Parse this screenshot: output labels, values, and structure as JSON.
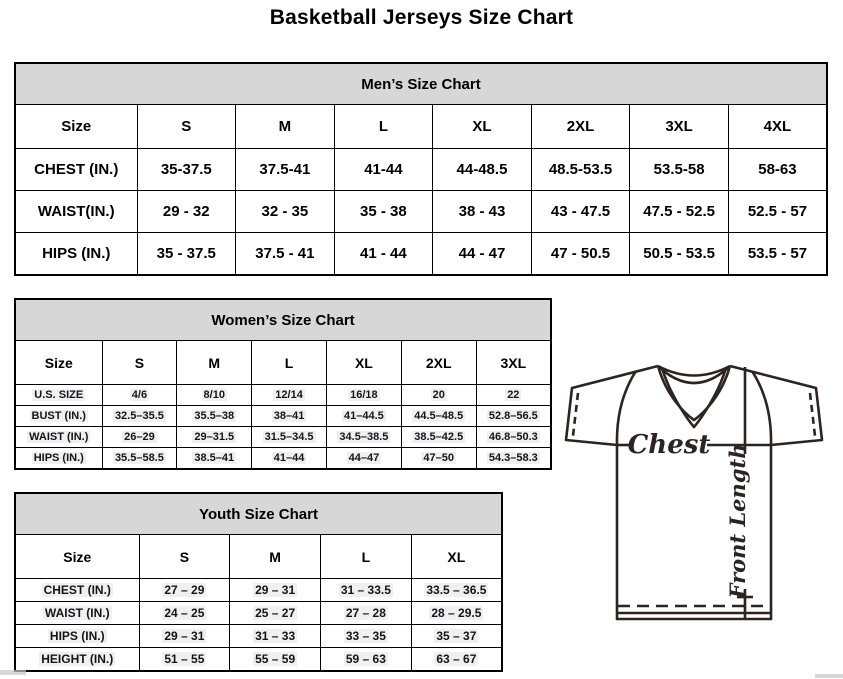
{
  "page_title": "Basketball Jerseys Size Chart",
  "colors": {
    "header_bg": "#d7d7d7",
    "table_border": "#000000",
    "jersey_stroke": "#2b2420",
    "value_highlight": "#f0f0f0"
  },
  "tables": {
    "men": {
      "title": "Men’s Size Chart",
      "columns": [
        "Size",
        "S",
        "M",
        "L",
        "XL",
        "2XL",
        "3XL",
        "4XL"
      ],
      "rows": [
        {
          "label": "CHEST (IN.)",
          "values": [
            "35-37.5",
            "37.5-41",
            "41-44",
            "44-48.5",
            "48.5-53.5",
            "53.5-58",
            "58-63"
          ]
        },
        {
          "label": "WAIST(IN.)",
          "values": [
            "29 - 32",
            "32 - 35",
            "35 - 38",
            "38 - 43",
            "43 - 47.5",
            "47.5 - 52.5",
            "52.5 - 57"
          ]
        },
        {
          "label": "HIPS (IN.)",
          "values": [
            "35 - 37.5",
            "37.5 - 41",
            "41 - 44",
            "44 - 47",
            "47 - 50.5",
            "50.5 - 53.5",
            "53.5 - 57"
          ]
        }
      ]
    },
    "women": {
      "title": "Women’s Size Chart",
      "columns": [
        "Size",
        "S",
        "M",
        "L",
        "XL",
        "2XL",
        "3XL"
      ],
      "rows": [
        {
          "label": "U.S. SIZE",
          "values": [
            "4/6",
            "8/10",
            "12/14",
            "16/18",
            "20",
            "22"
          ]
        },
        {
          "label": "BUST (IN.)",
          "values": [
            "32.5–35.5",
            "35.5–38",
            "38–41",
            "41–44.5",
            "44.5–48.5",
            "52.8–56.5"
          ]
        },
        {
          "label": "WAIST (IN.)",
          "values": [
            "26–29",
            "29–31.5",
            "31.5–34.5",
            "34.5–38.5",
            "38.5–42.5",
            "46.8–50.3"
          ]
        },
        {
          "label": "HIPS (IN.)",
          "values": [
            "35.5–58.5",
            "38.5–41",
            "41–44",
            "44–47",
            "47–50",
            "54.3–58.3"
          ]
        }
      ]
    },
    "youth": {
      "title": "Youth Size Chart",
      "columns": [
        "Size",
        "S",
        "M",
        "L",
        "XL"
      ],
      "rows": [
        {
          "label": "CHEST (IN.)",
          "values": [
            "27 – 29",
            "29 – 31",
            "31 – 33.5",
            "33.5 – 36.5"
          ]
        },
        {
          "label": "WAIST (IN.)",
          "values": [
            "24 – 25",
            "25 – 27",
            "27 – 28",
            "28 – 29.5"
          ]
        },
        {
          "label": "HIPS (IN.)",
          "values": [
            "29 – 31",
            "31 – 33",
            "33 – 35",
            "35 – 37"
          ]
        },
        {
          "label": "HEIGHT (IN.)",
          "values": [
            "51 – 55",
            "55 – 59",
            "59 – 63",
            "63 – 67"
          ]
        }
      ]
    }
  },
  "diagram": {
    "chest_label": "Chest",
    "front_length_label": "Front Length"
  }
}
